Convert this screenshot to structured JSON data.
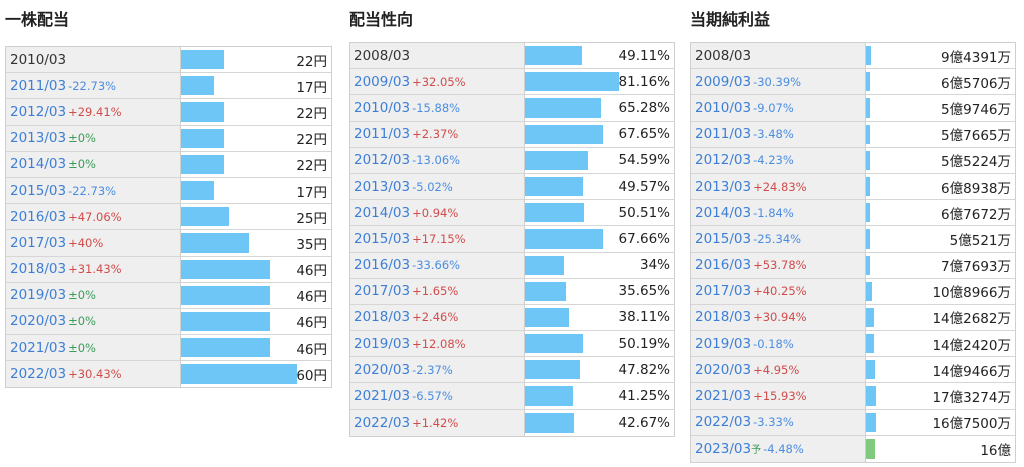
{
  "chart_data": [
    {
      "type": "bar",
      "title": "一株配当",
      "unit": "円",
      "categories": [
        "2010/03",
        "2011/03",
        "2012/03",
        "2013/03",
        "2014/03",
        "2015/03",
        "2016/03",
        "2017/03",
        "2018/03",
        "2019/03",
        "2020/03",
        "2021/03",
        "2022/03"
      ],
      "changes": [
        "",
        "-22.73%",
        "+29.41%",
        "±0%",
        "±0%",
        "-22.73%",
        "+47.06%",
        "+40%",
        "+31.43%",
        "±0%",
        "±0%",
        "±0%",
        "+30.43%"
      ],
      "values": [
        22,
        17,
        22,
        22,
        22,
        17,
        25,
        35,
        46,
        46,
        46,
        46,
        60
      ],
      "value_labels": [
        "22円",
        "17円",
        "22円",
        "22円",
        "22円",
        "17円",
        "25円",
        "35円",
        "46円",
        "46円",
        "46円",
        "46円",
        "60円"
      ],
      "ylim": [
        0,
        60
      ]
    },
    {
      "type": "bar",
      "title": "配当性向",
      "unit": "%",
      "categories": [
        "2008/03",
        "2009/03",
        "2010/03",
        "2011/03",
        "2012/03",
        "2013/03",
        "2014/03",
        "2015/03",
        "2016/03",
        "2017/03",
        "2018/03",
        "2019/03",
        "2020/03",
        "2021/03",
        "2022/03"
      ],
      "changes": [
        "",
        "+32.05%",
        "-15.88%",
        "+2.37%",
        "-13.06%",
        "-5.02%",
        "+0.94%",
        "+17.15%",
        "-33.66%",
        "+1.65%",
        "+2.46%",
        "+12.08%",
        "-2.37%",
        "-6.57%",
        "+1.42%"
      ],
      "values": [
        49.11,
        81.16,
        65.28,
        67.65,
        54.59,
        49.57,
        50.51,
        67.66,
        34,
        35.65,
        38.11,
        50.19,
        47.82,
        41.25,
        42.67
      ],
      "value_labels": [
        "49.11%",
        "81.16%",
        "65.28%",
        "67.65%",
        "54.59%",
        "49.57%",
        "50.51%",
        "67.66%",
        "34%",
        "35.65%",
        "38.11%",
        "50.19%",
        "47.82%",
        "41.25%",
        "42.67%"
      ],
      "ylim": [
        0,
        100
      ]
    },
    {
      "type": "bar",
      "title": "当期純利益",
      "unit": "万円",
      "categories": [
        "2008/03",
        "2009/03",
        "2010/03",
        "2011/03",
        "2012/03",
        "2013/03",
        "2014/03",
        "2015/03",
        "2016/03",
        "2017/03",
        "2018/03",
        "2019/03",
        "2020/03",
        "2021/03",
        "2022/03",
        "2023/03"
      ],
      "changes": [
        "",
        "-30.39%",
        "-9.07%",
        "-3.48%",
        "-4.23%",
        "+24.83%",
        "-1.84%",
        "-25.34%",
        "+53.78%",
        "+40.25%",
        "+30.94%",
        "-0.18%",
        "+4.95%",
        "+15.93%",
        "-3.33%",
        "-4.48%"
      ],
      "forecast_mark": "予",
      "forecast_index": 15,
      "values": [
        94391,
        65706,
        59746,
        57665,
        55224,
        68938,
        67672,
        50521,
        77693,
        108966,
        142682,
        142420,
        149466,
        173274,
        167500,
        160000
      ],
      "value_labels": [
        "9億4391万",
        "6億5706万",
        "5億9746万",
        "5億7665万",
        "5億5224万",
        "6億8938万",
        "6億7672万",
        "5億521万",
        "7億7693万",
        "10億8966万",
        "14億2682万",
        "14億2420万",
        "14億9466万",
        "17億3274万",
        "16億7500万",
        "16億"
      ],
      "ylim": [
        0,
        2500000
      ]
    }
  ]
}
